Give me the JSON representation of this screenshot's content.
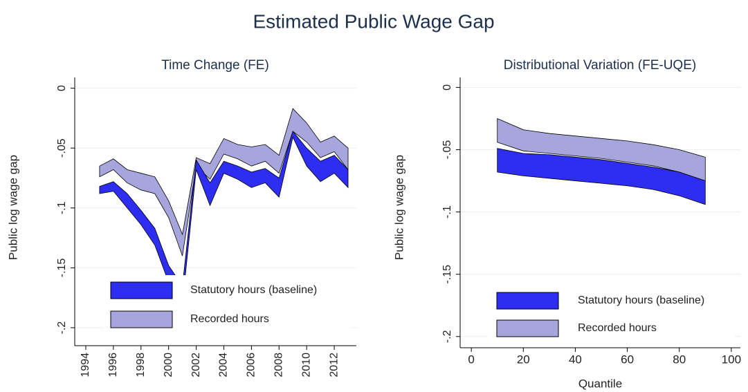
{
  "title": "Estimated Public Wage Gap",
  "chart_data": [
    {
      "type": "band",
      "title": "Time Change (FE)",
      "ylabel": "Public log wage gap",
      "x": [
        1995,
        1996,
        1997,
        1998,
        1999,
        2000,
        2001,
        2002,
        2003,
        2004,
        2005,
        2006,
        2007,
        2008,
        2009,
        2010,
        2011,
        2012,
        2013
      ],
      "xlim": [
        1993.2,
        2013.6
      ],
      "xticks": [
        1994,
        1996,
        1998,
        2000,
        2002,
        2004,
        2006,
        2008,
        2010,
        2012
      ],
      "xrotate": true,
      "ylim": [
        -0.215,
        0.009
      ],
      "yticks": [
        0,
        {
          "value": -0.05,
          "label": "-.05"
        },
        {
          "value": -0.1,
          "label": "-.1"
        },
        {
          "value": -0.15,
          "label": "-.15"
        },
        {
          "value": -0.2,
          "label": "-.2"
        }
      ],
      "grid": true,
      "series": [
        {
          "name": "Recorded hours",
          "color": "#a6a6dc",
          "upper": [
            -0.065,
            -0.059,
            -0.068,
            -0.071,
            -0.074,
            -0.094,
            -0.122,
            -0.058,
            -0.063,
            -0.042,
            -0.047,
            -0.049,
            -0.047,
            -0.056,
            -0.017,
            -0.029,
            -0.045,
            -0.04,
            -0.05
          ],
          "lower": [
            -0.074,
            -0.068,
            -0.079,
            -0.085,
            -0.088,
            -0.108,
            -0.14,
            -0.065,
            -0.076,
            -0.055,
            -0.059,
            -0.065,
            -0.061,
            -0.071,
            -0.036,
            -0.045,
            -0.058,
            -0.053,
            -0.068
          ]
        },
        {
          "name": "Statutory hours (baseline)",
          "color": "#2e2ef2",
          "upper": [
            -0.082,
            -0.078,
            -0.088,
            -0.102,
            -0.117,
            -0.148,
            -0.165,
            -0.06,
            -0.079,
            -0.061,
            -0.065,
            -0.07,
            -0.067,
            -0.075,
            -0.036,
            -0.05,
            -0.061,
            -0.056,
            -0.068
          ],
          "lower": [
            -0.088,
            -0.086,
            -0.1,
            -0.114,
            -0.131,
            -0.162,
            -0.18,
            -0.068,
            -0.098,
            -0.071,
            -0.076,
            -0.083,
            -0.079,
            -0.091,
            -0.041,
            -0.065,
            -0.078,
            -0.071,
            -0.083
          ]
        }
      ]
    },
    {
      "type": "band",
      "title": "Distributional Variation (FE-UQE)",
      "ylabel": "Public log wage gap",
      "xlabel": "Quantile",
      "x": [
        10,
        20,
        30,
        40,
        50,
        60,
        70,
        80,
        90
      ],
      "xlim": [
        -4.3,
        103.5
      ],
      "xticks": [
        0,
        20,
        40,
        60,
        80,
        100
      ],
      "xrotate": false,
      "ylim": [
        -0.209,
        0.008
      ],
      "yticks": [
        0,
        {
          "value": -0.05,
          "label": "-.05"
        },
        {
          "value": -0.1,
          "label": "-.1"
        },
        {
          "value": -0.15,
          "label": "-.15"
        },
        {
          "value": -0.2,
          "label": "-.2"
        }
      ],
      "grid": true,
      "series": [
        {
          "name": "Recorded hours",
          "color": "#a6a6dc",
          "upper": [
            -0.025,
            -0.034,
            -0.037,
            -0.039,
            -0.041,
            -0.043,
            -0.046,
            -0.05,
            -0.056
          ],
          "lower": [
            -0.044,
            -0.051,
            -0.053,
            -0.055,
            -0.057,
            -0.06,
            -0.063,
            -0.068,
            -0.075
          ]
        },
        {
          "name": "Statutory hours (baseline)",
          "color": "#2e2ef2",
          "upper": [
            -0.049,
            -0.053,
            -0.054,
            -0.056,
            -0.058,
            -0.061,
            -0.064,
            -0.068,
            -0.075
          ],
          "lower": [
            -0.068,
            -0.071,
            -0.073,
            -0.075,
            -0.077,
            -0.079,
            -0.082,
            -0.087,
            -0.094
          ]
        }
      ]
    }
  ]
}
